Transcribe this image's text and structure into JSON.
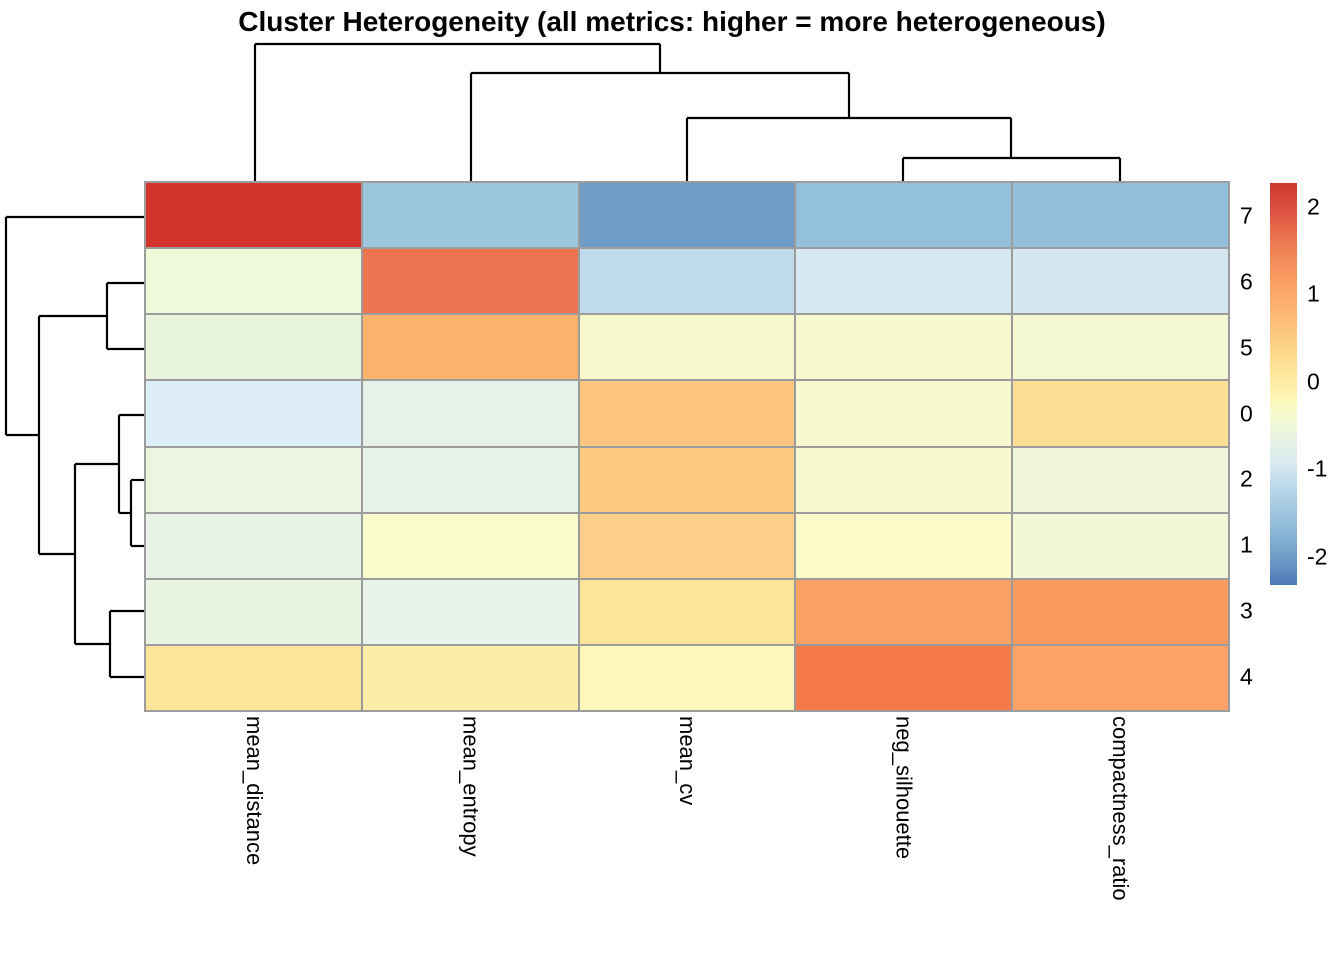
{
  "title": "Cluster Heterogeneity (all metrics: higher = more heterogeneous)",
  "chart_data": {
    "type": "heatmap",
    "title": "Cluster Heterogeneity (all metrics: higher = more heterogeneous)",
    "columns": [
      "mean_distance",
      "mean_entropy",
      "mean_cv",
      "neg_silhouette",
      "compactness_ratio"
    ],
    "rows": [
      "7",
      "6",
      "5",
      "0",
      "2",
      "1",
      "3",
      "4"
    ],
    "values": [
      [
        2.3,
        -1.35,
        -2.1,
        -1.45,
        -1.45
      ],
      [
        -0.25,
        1.75,
        -1.0,
        -0.7,
        -0.7
      ],
      [
        -0.3,
        1.2,
        0.05,
        0.05,
        -0.1
      ],
      [
        -0.6,
        -0.35,
        0.9,
        0.0,
        0.55
      ],
      [
        -0.3,
        -0.45,
        0.85,
        0.0,
        -0.2
      ],
      [
        -0.35,
        0.1,
        0.75,
        0.1,
        -0.15
      ],
      [
        -0.3,
        -0.4,
        0.5,
        1.4,
        1.5
      ],
      [
        0.5,
        0.4,
        0.15,
        1.75,
        1.35
      ]
    ],
    "cell_colors": [
      [
        "#d2342c",
        "#9cc7df",
        "#6f9cc7",
        "#93c0db",
        "#92bedb"
      ],
      [
        "#eff8d9",
        "#ed7450",
        "#bedbeb",
        "#d6e8f1",
        "#d4e7f0"
      ],
      [
        "#e9f4dc",
        "#fbb26a",
        "#f7f9cd",
        "#f8f9cf",
        "#f4f8d3"
      ],
      [
        "#ddeef6",
        "#e6f1e7",
        "#fcc680",
        "#f8f9d0",
        "#fcdf95"
      ],
      [
        "#ecf5e0",
        "#e6f2e9",
        "#fcc980",
        "#f8f9ce",
        "#eff6d9"
      ],
      [
        "#e7f3e4",
        "#f9fbca",
        "#fccf88",
        "#fafbc9",
        "#f1f7d6"
      ],
      [
        "#eaf4e2",
        "#e8f3e9",
        "#fde496",
        "#fba166",
        "#fa9a5f"
      ],
      [
        "#fde49b",
        "#fdeda6",
        "#fcf8ba",
        "#f57a4b",
        "#fba268"
      ]
    ],
    "grid_color": "#9c9c9c",
    "dendrogram_color": "#000000",
    "col_cluster_topology": "(mean_distance,(mean_entropy,(mean_cv,(neg_silhouette,compactness_ratio))))",
    "row_cluster_topology": "(7,((6,5),((0,(2,1)),(3,4))))",
    "col_dendrogram_segments": [
      [
        255,
        44,
        660,
        44
      ],
      [
        660,
        44,
        660,
        73
      ],
      [
        471,
        73,
        849,
        73
      ],
      [
        849,
        73,
        849,
        118
      ],
      [
        687,
        118,
        1011,
        118
      ],
      [
        1011,
        118,
        1011,
        158
      ],
      [
        903,
        158,
        1120,
        158
      ],
      [
        255,
        44,
        255,
        183
      ],
      [
        471,
        73,
        471,
        183
      ],
      [
        687,
        118,
        687,
        183
      ],
      [
        903,
        158,
        903,
        183
      ],
      [
        1120,
        158,
        1120,
        183
      ]
    ],
    "row_dendrogram_segments": [
      [
        6,
        217,
        146,
        217
      ],
      [
        107,
        283,
        146,
        283
      ],
      [
        107,
        349,
        146,
        349
      ],
      [
        119,
        415,
        146,
        415
      ],
      [
        131,
        480,
        146,
        480
      ],
      [
        131,
        546,
        146,
        546
      ],
      [
        110,
        611,
        146,
        611
      ],
      [
        110,
        677,
        146,
        677
      ],
      [
        6,
        217,
        6,
        435
      ],
      [
        6,
        435,
        39,
        435
      ],
      [
        39,
        316,
        39,
        554
      ],
      [
        39,
        316,
        107,
        316
      ],
      [
        107,
        283,
        107,
        349
      ],
      [
        39,
        554,
        75,
        554
      ],
      [
        75,
        464,
        75,
        644
      ],
      [
        75,
        464,
        119,
        464
      ],
      [
        119,
        415,
        119,
        513
      ],
      [
        119,
        513,
        131,
        513
      ],
      [
        131,
        480,
        131,
        546
      ],
      [
        75,
        644,
        110,
        644
      ],
      [
        110,
        611,
        110,
        677
      ]
    ],
    "legend": {
      "ticks": [
        {
          "label": "2",
          "value": 2
        },
        {
          "label": "1",
          "value": 1
        },
        {
          "label": "0",
          "value": 0
        },
        {
          "label": "-1",
          "value": -1
        },
        {
          "label": "-2",
          "value": -2
        }
      ],
      "vmin": -2.32,
      "vmax": 2.27,
      "position": "right",
      "gradient": [
        {
          "pos": 0,
          "color": "#cb382c"
        },
        {
          "pos": 7,
          "color": "#dd5240"
        },
        {
          "pos": 15,
          "color": "#ee7a52"
        },
        {
          "pos": 24,
          "color": "#f99d63"
        },
        {
          "pos": 33,
          "color": "#fdb976"
        },
        {
          "pos": 41,
          "color": "#fdd488"
        },
        {
          "pos": 48,
          "color": "#fee89f"
        },
        {
          "pos": 54,
          "color": "#fdf7b9"
        },
        {
          "pos": 58,
          "color": "#f6fad1"
        },
        {
          "pos": 64,
          "color": "#e7f2e4"
        },
        {
          "pos": 70,
          "color": "#d8e9f1"
        },
        {
          "pos": 78,
          "color": "#b0d2e6"
        },
        {
          "pos": 87,
          "color": "#8ab6d6"
        },
        {
          "pos": 94,
          "color": "#6b97c6"
        },
        {
          "pos": 100,
          "color": "#4d79b5"
        }
      ]
    }
  }
}
